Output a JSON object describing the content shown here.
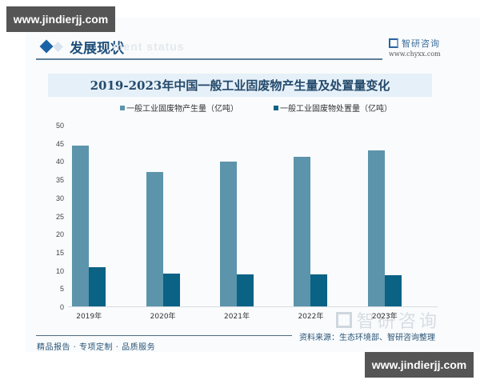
{
  "watermark": {
    "top": "www.jindierjj.com",
    "bottom": "www.jindierjj.com"
  },
  "section": {
    "title": "发展现状",
    "ghost_subtitle": "ment status"
  },
  "brand": {
    "name": "智研咨询",
    "url": "www.chyxx.com"
  },
  "footer": {
    "tagline": "精品报告 · 专项定制 · 品质服务",
    "source": "资料来源：生态环境部、智研咨询整理",
    "watermark_brand": "智研咨询"
  },
  "colors": {
    "series1": "#5c94ab",
    "series2": "#0a6285",
    "title_band": "#e6f0f8",
    "accent": "#1a62a6"
  },
  "chart_data": {
    "type": "bar",
    "title": "2019-2023年中国一般工业固废物产生量及处置量变化",
    "categories": [
      "2019年",
      "2020年",
      "2021年",
      "2022年",
      "2023年"
    ],
    "series": [
      {
        "name": "一般工业固废物产生量（亿吨）",
        "values": [
          44.2,
          36.9,
          39.8,
          41.1,
          42.9
        ]
      },
      {
        "name": "一般工业固废物处置量（亿吨）",
        "values": [
          10.9,
          9.0,
          8.8,
          8.8,
          8.6
        ]
      }
    ],
    "xlabel": "",
    "ylabel": "",
    "ylim": [
      0,
      50
    ],
    "yticks": [
      0,
      5,
      10,
      15,
      20,
      25,
      30,
      35,
      40,
      45,
      50
    ],
    "grid": false,
    "legend_position": "top"
  }
}
